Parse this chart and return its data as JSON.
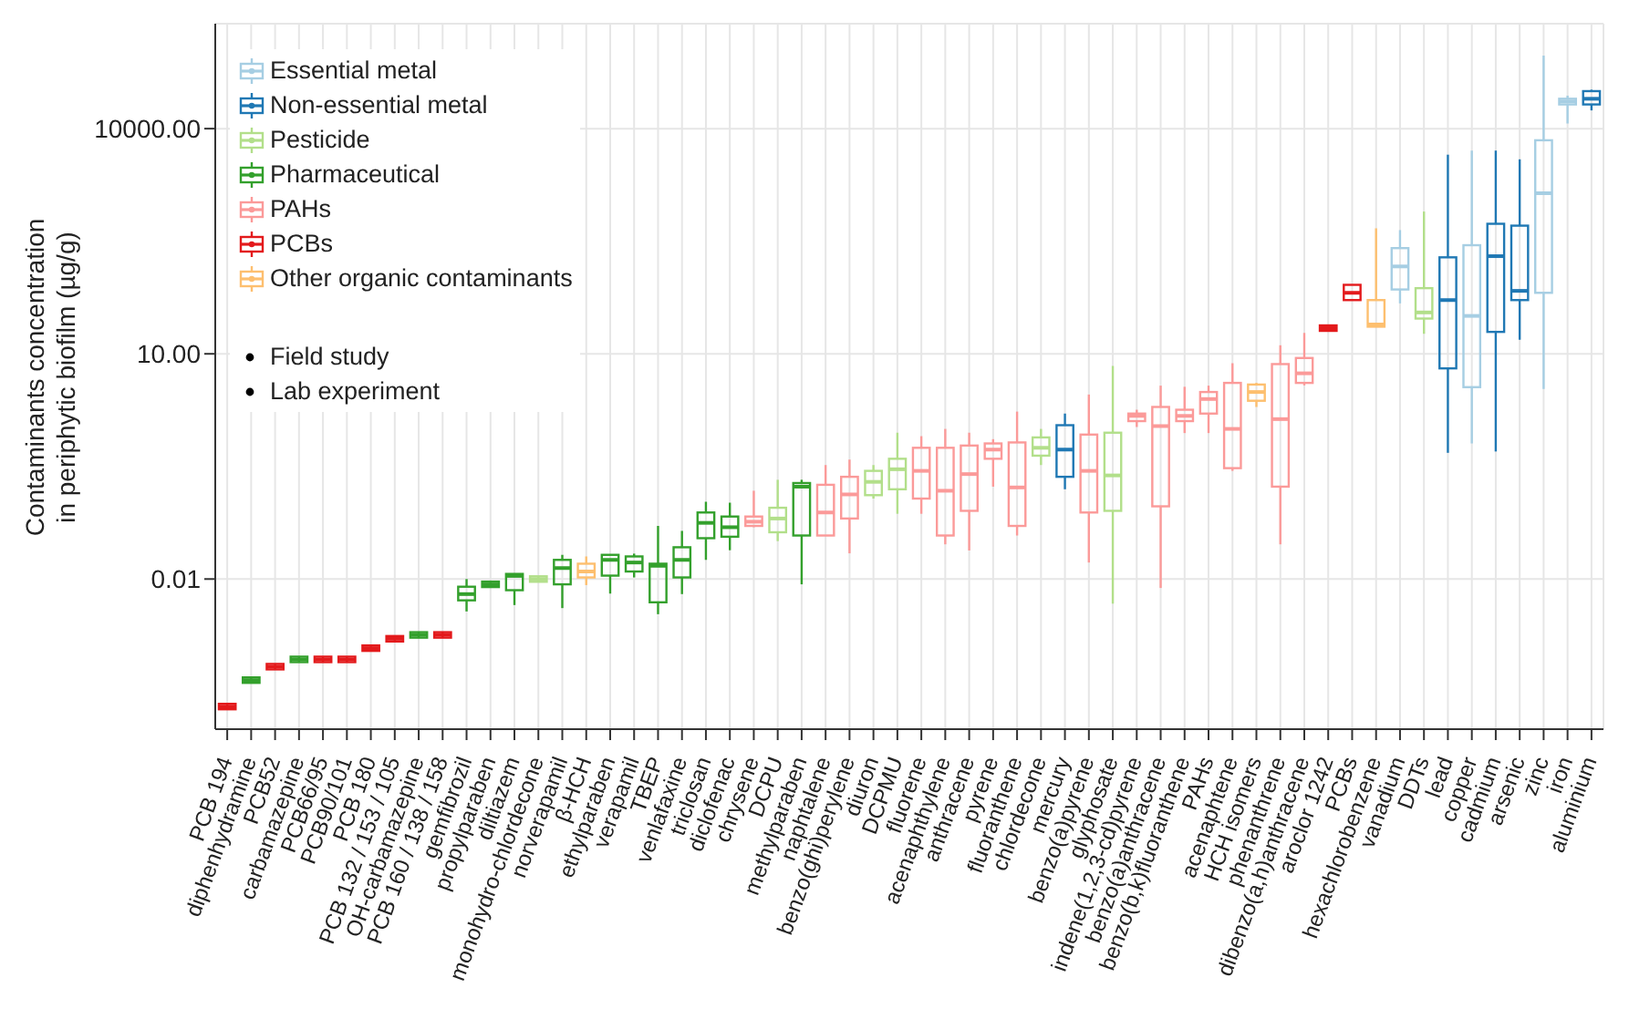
{
  "chart_data": {
    "type": "box",
    "ylabel": "Contaminants concentration\nin periphytic biofilm (µg/g)",
    "categories": [
      "PCB 194",
      "diphenhydramine",
      "PCB52",
      "carbamazepine",
      "PCB66/95",
      "PCB90/101",
      "PCB 180",
      "PCB 132 / 153 / 105",
      "OH-carbamazepine",
      "PCB 160 / 138 / 158",
      "gemfibrozil",
      "propylparaben",
      "diltiazem",
      "monohydro-chlordecone",
      "norverapamil",
      "β-HCH",
      "ethylparaben",
      "verapamil",
      "TBEP",
      "venlafaxine",
      "triclosan",
      "diclofenac",
      "chrysene",
      "DCPU",
      "methylparaben",
      "naphtalene",
      "benzo(ghi)perylene",
      "diuron",
      "DCPMU",
      "fluorene",
      "acenaphthylene",
      "anthracene",
      "pyrene",
      "fluoranthene",
      "chlordecone",
      "mercury",
      "benzo(a)pyrene",
      "glyphosate",
      "indene(1,2,3-cd)pyrene",
      "benzo(a)anthracene",
      "benzo(b,k)fluoranthene",
      "PAHs",
      "acenaphtene",
      "HCH isomers",
      "phenanthrene",
      "dibenzo(a,h)anthracene",
      "aroclor 1242",
      "PCBs",
      "hexachlorobenzene",
      "vanadium",
      "DDTs",
      "lead",
      "copper",
      "cadmium",
      "arsenic",
      "zinc",
      "iron",
      "aluminium"
    ],
    "series": [
      {
        "name": "Essential metal",
        "color": "#a6cee3",
        "boxes": [
          null,
          null,
          null,
          null,
          null,
          null,
          null,
          null,
          null,
          null,
          null,
          null,
          null,
          null,
          null,
          null,
          null,
          null,
          null,
          null,
          null,
          null,
          null,
          null,
          null,
          null,
          null,
          null,
          null,
          null,
          null,
          null,
          null,
          null,
          null,
          null,
          null,
          null,
          null,
          null,
          null,
          null,
          null,
          null,
          null,
          null,
          null,
          null,
          null,
          {
            "low": 47,
            "q1": 72,
            "median": 146,
            "q3": 256,
            "high": 445
          },
          null,
          null,
          {
            "low": 0.64,
            "q1": 3.6,
            "median": 32,
            "q3": 280,
            "high": 5100
          },
          null,
          null,
          {
            "low": 3.4,
            "q1": 65,
            "median": 1380,
            "q3": 7000,
            "high": 94000
          },
          {
            "low": 11700,
            "q1": 21000,
            "median": 23000,
            "q3": 25000,
            "high": 27500
          },
          null
        ]
      },
      {
        "name": "Non-essential metal",
        "color": "#1f78b4",
        "boxes": [
          null,
          null,
          null,
          null,
          null,
          null,
          null,
          null,
          null,
          null,
          null,
          null,
          null,
          null,
          null,
          null,
          null,
          null,
          null,
          null,
          null,
          null,
          null,
          null,
          null,
          null,
          null,
          null,
          null,
          null,
          null,
          null,
          null,
          null,
          null,
          {
            "low": 0.157,
            "q1": 0.23,
            "median": 0.53,
            "q3": 1.12,
            "high": 1.6
          },
          null,
          null,
          null,
          null,
          null,
          null,
          null,
          null,
          null,
          null,
          null,
          null,
          null,
          null,
          null,
          {
            "low": 0.48,
            "q1": 6.4,
            "median": 52,
            "q3": 193,
            "high": 4500
          },
          null,
          {
            "low": 0.5,
            "q1": 19.6,
            "median": 200,
            "q3": 540,
            "high": 5100
          },
          {
            "low": 15.4,
            "q1": 52,
            "median": 69,
            "q3": 510,
            "high": 3900
          },
          null,
          null,
          {
            "low": 17500,
            "q1": 21000,
            "median": 25000,
            "q3": 31600,
            "high": 33000
          }
        ]
      },
      {
        "name": "Pesticide",
        "color": "#b2df8a",
        "boxes": [
          null,
          null,
          null,
          null,
          null,
          null,
          null,
          null,
          null,
          null,
          null,
          null,
          null,
          {
            "low": 0.01,
            "q1": 0.01,
            "median": 0.01,
            "q3": 0.01,
            "high": 0.01
          },
          null,
          null,
          null,
          null,
          null,
          null,
          null,
          null,
          null,
          {
            "low": 0.032,
            "q1": 0.042,
            "median": 0.064,
            "q3": 0.089,
            "high": 0.21
          },
          null,
          null,
          null,
          {
            "low": 0.118,
            "q1": 0.131,
            "median": 0.197,
            "q3": 0.276,
            "high": 0.33
          },
          {
            "low": 0.074,
            "q1": 0.157,
            "median": 0.29,
            "q3": 0.4,
            "high": 0.89
          },
          null,
          null,
          null,
          null,
          null,
          {
            "low": 0.33,
            "q1": 0.44,
            "median": 0.56,
            "q3": 0.77,
            "high": 1.0
          },
          null,
          null,
          {
            "low": 0.0047,
            "q1": 0.081,
            "median": 0.24,
            "q3": 0.89,
            "high": 6.9
          },
          null,
          null,
          null,
          null,
          null,
          null,
          null,
          null,
          null,
          null,
          null,
          null,
          {
            "low": 18.5,
            "q1": 29.5,
            "median": 35.6,
            "q3": 75,
            "high": 786
          },
          null,
          null,
          null,
          null,
          null,
          null,
          null
        ]
      },
      {
        "name": "Pharmaceutical",
        "color": "#33a02c",
        "boxes": [
          null,
          {
            "low": 0.00045,
            "q1": 0.00045,
            "median": 0.00045,
            "q3": 0.00045,
            "high": 0.00045
          },
          null,
          {
            "low": 0.00085,
            "q1": 0.00085,
            "median": 0.00085,
            "q3": 0.00085,
            "high": 0.00085
          },
          null,
          null,
          null,
          null,
          {
            "low": 0.0018,
            "q1": 0.0018,
            "median": 0.0018,
            "q3": 0.0018,
            "high": 0.0018
          },
          null,
          {
            "low": 0.0037,
            "q1": 0.0052,
            "median": 0.0063,
            "q3": 0.0079,
            "high": 0.01
          },
          {
            "low": 0.0085,
            "q1": 0.0085,
            "median": 0.0085,
            "q3": 0.0085,
            "high": 0.0085
          },
          {
            "low": 0.0045,
            "q1": 0.0071,
            "median": 0.011,
            "q3": 0.0117,
            "high": 0.0117
          },
          null,
          {
            "low": 0.0041,
            "q1": 0.0085,
            "median": 0.014,
            "q3": 0.018,
            "high": 0.021
          },
          null,
          {
            "low": 0.0064,
            "q1": 0.0111,
            "median": 0.018,
            "q3": 0.021,
            "high": 0.021
          },
          {
            "low": 0.0105,
            "q1": 0.0126,
            "median": 0.0166,
            "q3": 0.02,
            "high": 0.0218
          },
          {
            "low": 0.0034,
            "q1": 0.0049,
            "median": 0.015,
            "q3": 0.016,
            "high": 0.051
          },
          {
            "low": 0.0063,
            "q1": 0.0105,
            "median": 0.018,
            "q3": 0.0265,
            "high": 0.0438
          },
          {
            "low": 0.018,
            "q1": 0.035,
            "median": 0.056,
            "q3": 0.077,
            "high": 0.107
          },
          {
            "low": 0.0242,
            "q1": 0.0366,
            "median": 0.049,
            "q3": 0.068,
            "high": 0.104
          },
          null,
          null,
          {
            "low": 0.0085,
            "q1": 0.038,
            "median": 0.17,
            "q3": 0.19,
            "high": 0.21
          },
          null,
          null,
          null,
          null,
          null,
          null,
          null,
          null,
          null,
          null,
          null,
          null,
          null,
          null,
          null,
          null,
          null,
          null,
          null,
          null,
          null,
          null,
          null,
          null,
          null,
          null,
          null,
          null,
          null,
          null,
          null,
          null,
          null
        ]
      },
      {
        "name": "PAHs",
        "color": "#fb9a99",
        "boxes": [
          null,
          null,
          null,
          null,
          null,
          null,
          null,
          null,
          null,
          null,
          null,
          null,
          null,
          null,
          null,
          null,
          null,
          null,
          null,
          null,
          null,
          null,
          {
            "low": 0.049,
            "q1": 0.051,
            "median": 0.058,
            "q3": 0.068,
            "high": 0.15
          },
          null,
          null,
          {
            "low": 0.038,
            "q1": 0.038,
            "median": 0.077,
            "q3": 0.18,
            "high": 0.33
          },
          {
            "low": 0.022,
            "q1": 0.064,
            "median": 0.134,
            "q3": 0.23,
            "high": 0.39
          },
          null,
          null,
          {
            "low": 0.074,
            "q1": 0.118,
            "median": 0.276,
            "q3": 0.56,
            "high": 0.8
          },
          {
            "low": 0.029,
            "q1": 0.038,
            "median": 0.15,
            "q3": 0.56,
            "high": 1.0
          },
          {
            "low": 0.024,
            "q1": 0.081,
            "median": 0.25,
            "q3": 0.6,
            "high": 0.89
          },
          {
            "low": 0.17,
            "q1": 0.4,
            "median": 0.53,
            "q3": 0.64,
            "high": 0.73
          },
          {
            "low": 0.038,
            "q1": 0.051,
            "median": 0.166,
            "q3": 0.66,
            "high": 1.7
          },
          null,
          null,
          {
            "low": 0.0166,
            "q1": 0.077,
            "median": 0.276,
            "q3": 0.84,
            "high": 2.87
          },
          null,
          {
            "low": 1.06,
            "q1": 1.27,
            "median": 1.49,
            "q3": 1.6,
            "high": 1.8
          },
          {
            "low": 0.0076,
            "q1": 0.093,
            "median": 1.09,
            "q3": 1.96,
            "high": 3.77
          },
          {
            "low": 0.88,
            "q1": 1.27,
            "median": 1.49,
            "q3": 1.8,
            "high": 3.64
          },
          {
            "low": 0.88,
            "q1": 1.6,
            "median": 2.5,
            "q3": 3.1,
            "high": 3.77
          },
          {
            "low": 0.276,
            "q1": 0.3,
            "median": 1.0,
            "q3": 4.1,
            "high": 7.5
          },
          null,
          {
            "low": 0.029,
            "q1": 0.17,
            "median": 1.35,
            "q3": 7.3,
            "high": 13
          },
          {
            "low": 3.8,
            "q1": 4.1,
            "median": 5.5,
            "q3": 8.8,
            "high": 19
          },
          null,
          null,
          null,
          null,
          null,
          null,
          null,
          null,
          null,
          null,
          null,
          null
        ]
      },
      {
        "name": "PCBs",
        "color": "#e31a1c",
        "boxes": [
          {
            "low": 0.0002,
            "q1": 0.0002,
            "median": 0.0002,
            "q3": 0.0002,
            "high": 0.0002
          },
          null,
          {
            "low": 0.00068,
            "q1": 0.00068,
            "median": 0.00068,
            "q3": 0.00068,
            "high": 0.00068
          },
          null,
          {
            "low": 0.00085,
            "q1": 0.00085,
            "median": 0.00085,
            "q3": 0.00085,
            "high": 0.00085
          },
          {
            "low": 0.00085,
            "q1": 0.00085,
            "median": 0.00085,
            "q3": 0.00085,
            "high": 0.00085
          },
          {
            "low": 0.0012,
            "q1": 0.0012,
            "median": 0.0012,
            "q3": 0.0012,
            "high": 0.0012
          },
          {
            "low": 0.0016,
            "q1": 0.0016,
            "median": 0.0016,
            "q3": 0.0016,
            "high": 0.0016
          },
          null,
          {
            "low": 0.0018,
            "q1": 0.0018,
            "median": 0.0018,
            "q3": 0.0018,
            "high": 0.0018
          },
          null,
          null,
          null,
          null,
          null,
          null,
          null,
          null,
          null,
          null,
          null,
          null,
          null,
          null,
          null,
          null,
          null,
          null,
          null,
          null,
          null,
          null,
          null,
          null,
          null,
          null,
          null,
          null,
          null,
          null,
          null,
          null,
          null,
          null,
          null,
          null,
          {
            "low": 22,
            "q1": 22,
            "median": 22,
            "q3": 22,
            "high": 22
          },
          {
            "low": 52,
            "q1": 52,
            "median": 65,
            "q3": 83,
            "high": 83
          },
          null,
          null,
          null,
          null,
          null,
          null,
          null,
          null,
          null,
          null
        ]
      },
      {
        "name": "Other organic contaminants",
        "color": "#fdbf6f",
        "boxes": [
          null,
          null,
          null,
          null,
          null,
          null,
          null,
          null,
          null,
          null,
          null,
          null,
          null,
          null,
          null,
          {
            "low": 0.0083,
            "q1": 0.0105,
            "median": 0.0126,
            "q3": 0.016,
            "high": 0.02
          },
          null,
          null,
          null,
          null,
          null,
          null,
          null,
          null,
          null,
          null,
          null,
          null,
          null,
          null,
          null,
          null,
          null,
          null,
          null,
          null,
          null,
          null,
          null,
          null,
          null,
          null,
          null,
          {
            "low": 1.96,
            "q1": 2.37,
            "median": 3.1,
            "q3": 3.9,
            "high": 4.1
          },
          null,
          null,
          null,
          null,
          {
            "low": 23,
            "q1": 23,
            "median": 24.6,
            "q3": 52,
            "high": 470
          },
          null,
          null,
          null,
          null,
          null,
          null,
          null,
          null,
          null
        ]
      }
    ],
    "ylim": [
      0.0001,
      250000
    ],
    "log": "y",
    "yticks": [
      {
        "value": 0.01,
        "label": "0.01"
      },
      {
        "value": 10,
        "label": "10.00"
      },
      {
        "value": 10000,
        "label": "10000.00"
      }
    ],
    "grid": true,
    "legend": "top left",
    "annotations": [
      "Field study",
      "Lab experiment"
    ]
  }
}
